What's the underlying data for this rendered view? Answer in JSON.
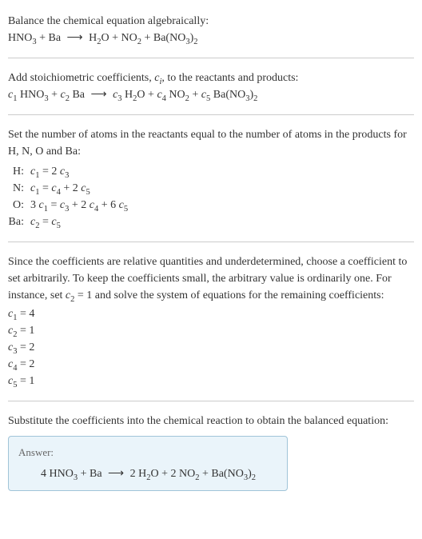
{
  "text_color": "#333333",
  "background_color": "#ffffff",
  "divider_color": "#cccccc",
  "answer_box": {
    "bg": "#eaf4fa",
    "border": "#a0c4d8"
  },
  "intro": {
    "line1": "Balance the chemical equation algebraically:",
    "equation_parts": {
      "hno3": "HNO",
      "hno3_sub": "3",
      "plus1": " + Ba ",
      "arrow": "⟶",
      "h2o_h": " H",
      "h2o_sub1": "2",
      "h2o_o": "O + NO",
      "no2_sub": "2",
      "plus3": " + Ba(NO",
      "bano3_sub1": "3",
      "close": ")",
      "bano3_sub2": "2"
    }
  },
  "stoich": {
    "line1_a": "Add stoichiometric coefficients, ",
    "ci": "c",
    "ci_sub": "i",
    "line1_b": ", to the reactants and products:",
    "eq": {
      "c1": "c",
      "c1s": "1",
      "sp1": " HNO",
      "s1": "3",
      "pl1": " + ",
      "c2": "c",
      "c2s": "2",
      "sp2": " Ba ",
      "arrow": "⟶",
      "sp3": " ",
      "c3": "c",
      "c3s": "3",
      "h2": " H",
      "h2s": "2",
      "o": "O + ",
      "c4": "c",
      "c4s": "4",
      "no": " NO",
      "nos": "2",
      "pl2": " + ",
      "c5": "c",
      "c5s": "5",
      "ba": " Ba(NO",
      "bas1": "3",
      "cp": ")",
      "bas2": "2"
    }
  },
  "atoms": {
    "intro": "Set the number of atoms in the reactants equal to the number of atoms in the products for H, N, O and Ba:",
    "rows": [
      {
        "label": "H:",
        "eq": {
          "a": "c",
          "as": "1",
          "b": " = 2 ",
          "c": "c",
          "cs": "3"
        }
      },
      {
        "label": "N:",
        "eq": {
          "a": "c",
          "as": "1",
          "b": " = ",
          "c": "c",
          "cs": "4",
          "d": " + 2 ",
          "e": "c",
          "es": "5"
        }
      },
      {
        "label": "O:",
        "eq": {
          "pre": "3 ",
          "a": "c",
          "as": "1",
          "b": " = ",
          "c": "c",
          "cs": "3",
          "d": " + 2 ",
          "e": "c",
          "es": "4",
          "f": " + 6 ",
          "g": "c",
          "gs": "5"
        }
      },
      {
        "label": "Ba:",
        "eq": {
          "a": "c",
          "as": "2",
          "b": " = ",
          "c": "c",
          "cs": "5"
        }
      }
    ]
  },
  "arbitrary": {
    "text_a": "Since the coefficients are relative quantities and underdetermined, choose a coefficient to set arbitrarily. To keep the coefficients small, the arbitrary value is ordinarily one. For instance, set ",
    "c": "c",
    "cs": "2",
    "text_b": " = 1 and solve the system of equations for the remaining coefficients:",
    "coeffs": [
      {
        "c": "c",
        "s": "1",
        "v": " = 4"
      },
      {
        "c": "c",
        "s": "2",
        "v": " = 1"
      },
      {
        "c": "c",
        "s": "3",
        "v": " = 2"
      },
      {
        "c": "c",
        "s": "4",
        "v": " = 2"
      },
      {
        "c": "c",
        "s": "5",
        "v": " = 1"
      }
    ]
  },
  "final": {
    "intro": "Substitute the coefficients into the chemical reaction to obtain the balanced equation:",
    "answer_label": "Answer:",
    "eq": {
      "a": "4 HNO",
      "as": "3",
      "b": " + Ba ",
      "arrow": "⟶",
      "c": " 2 H",
      "cs": "2",
      "d": "O + 2 NO",
      "ds": "2",
      "e": " + Ba(NO",
      "es1": "3",
      "cp": ")",
      "es2": "2"
    }
  }
}
